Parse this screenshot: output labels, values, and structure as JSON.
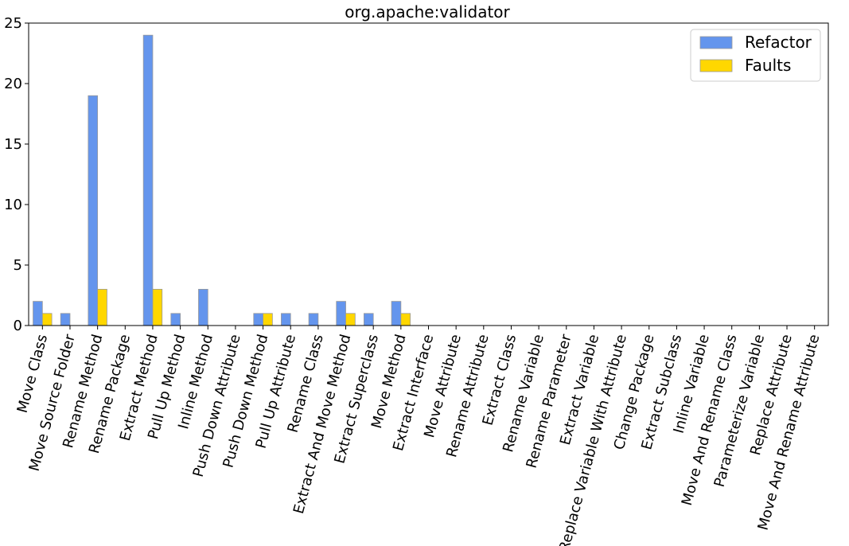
{
  "chart_data": {
    "type": "bar",
    "title": "org.apache:validator",
    "xlabel": "",
    "ylabel": "",
    "ylim": [
      0,
      25
    ],
    "yticks": [
      0,
      5,
      10,
      15,
      20,
      25
    ],
    "grid": false,
    "legend_position": "top-right",
    "categories": [
      "Move Class",
      "Move Source Folder",
      "Rename Method",
      "Rename Package",
      "Extract Method",
      "Pull Up Method",
      "Inline Method",
      "Push Down Attribute",
      "Push Down Method",
      "Pull Up Attribute",
      "Rename Class",
      "Extract And Move Method",
      "Extract Superclass",
      "Move Method",
      "Extract Interface",
      "Move Attribute",
      "Rename Attribute",
      "Extract Class",
      "Rename Variable",
      "Rename Parameter",
      "Extract Variable",
      "Replace Variable With Attribute",
      "Change Package",
      "Extract Subclass",
      "Inline Variable",
      "Move And Rename Class",
      "Parameterize Variable",
      "Replace Attribute",
      "Move And Rename Attribute"
    ],
    "series": [
      {
        "name": "Refactor",
        "color": "#6495ed",
        "values": [
          2,
          1,
          19,
          0,
          24,
          1,
          3,
          0,
          1,
          1,
          1,
          2,
          1,
          2,
          0,
          0,
          0,
          0,
          0,
          0,
          0,
          0,
          0,
          0,
          0,
          0,
          0,
          0,
          0
        ]
      },
      {
        "name": "Faults",
        "color": "#ffd700",
        "values": [
          1,
          0,
          3,
          0,
          3,
          0,
          0,
          0,
          1,
          0,
          0,
          1,
          0,
          1,
          0,
          0,
          0,
          0,
          0,
          0,
          0,
          0,
          0,
          0,
          0,
          0,
          0,
          0,
          0
        ]
      }
    ]
  }
}
